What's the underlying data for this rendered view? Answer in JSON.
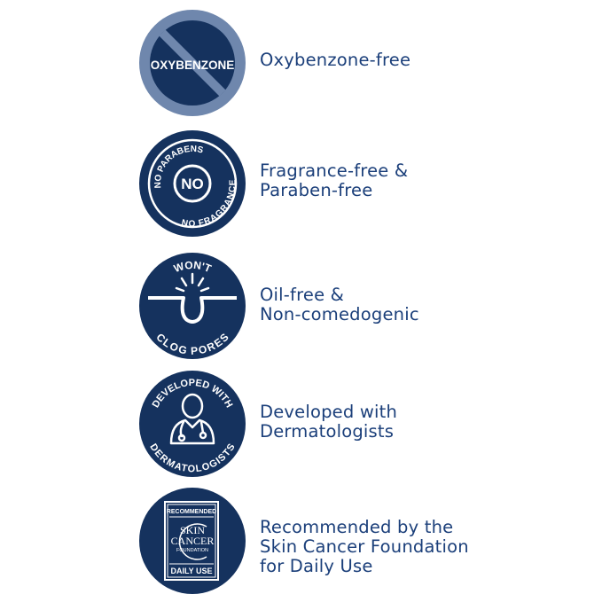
{
  "colors": {
    "navy": "#15325e",
    "slate": "#6f87ad",
    "label": "#1b3f7a",
    "white": "#ffffff"
  },
  "features": [
    {
      "icon": "no-oxybenzone-icon",
      "badge_text": [
        "OXYBENZONE"
      ],
      "label_lines": [
        "Oxybenzone-free"
      ]
    },
    {
      "icon": "no-parabens-no-fragrance-icon",
      "badge_text": [
        "NO PARABENS",
        "NO",
        "NO FRAGRANCE"
      ],
      "label_lines": [
        "Fragrance-free &",
        "Paraben-free"
      ]
    },
    {
      "icon": "wont-clog-pores-icon",
      "badge_text": [
        "WON'T",
        "CLOG PORES"
      ],
      "label_lines": [
        "Oil-free &",
        "Non-comedogenic"
      ]
    },
    {
      "icon": "developed-with-dermatologists-icon",
      "badge_text": [
        "DEVELOPED WITH",
        "DERMATOLOGISTS"
      ],
      "label_lines": [
        "Developed with",
        "Dermatologists"
      ]
    },
    {
      "icon": "skin-cancer-foundation-seal-icon",
      "badge_text": [
        "RECOMMENDED",
        "SKIN",
        "CANCER",
        "FOUNDATION",
        "DAILY USE"
      ],
      "label_lines": [
        "Recommended by the",
        "Skin Cancer Foundation",
        "for Daily Use"
      ]
    }
  ]
}
